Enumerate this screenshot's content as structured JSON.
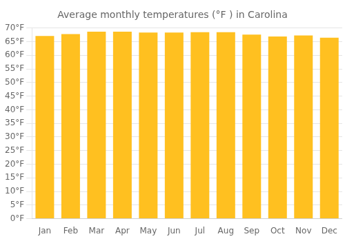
{
  "chart_data": {
    "type": "bar",
    "title": "Average monthly temperatures (°F ) in Carolina",
    "categories": [
      "Jan",
      "Feb",
      "Mar",
      "Apr",
      "May",
      "Jun",
      "Jul",
      "Aug",
      "Sep",
      "Oct",
      "Nov",
      "Dec"
    ],
    "values": [
      67.1,
      67.8,
      68.7,
      68.7,
      68.4,
      68.4,
      68.5,
      68.5,
      67.6,
      66.9,
      67.3,
      66.5
    ],
    "color": "#FFC020",
    "ylim": [
      0,
      70
    ],
    "yticks": [
      {
        "value": 0,
        "label": "0°F"
      },
      {
        "value": 5,
        "label": "5°F"
      },
      {
        "value": 10,
        "label": "10°F"
      },
      {
        "value": 15,
        "label": "15°F"
      },
      {
        "value": 20,
        "label": "20°F"
      },
      {
        "value": 25,
        "label": "25°F"
      },
      {
        "value": 30,
        "label": "30°F"
      },
      {
        "value": 35,
        "label": "35°F"
      },
      {
        "value": 40,
        "label": "40°F"
      },
      {
        "value": 45,
        "label": "45°F"
      },
      {
        "value": 50,
        "label": "50°F"
      },
      {
        "value": 55,
        "label": "55°F"
      },
      {
        "value": 60,
        "label": "60°F"
      },
      {
        "value": 65,
        "label": "65°F"
      },
      {
        "value": 70,
        "label": "70°F"
      }
    ],
    "grid": true
  }
}
